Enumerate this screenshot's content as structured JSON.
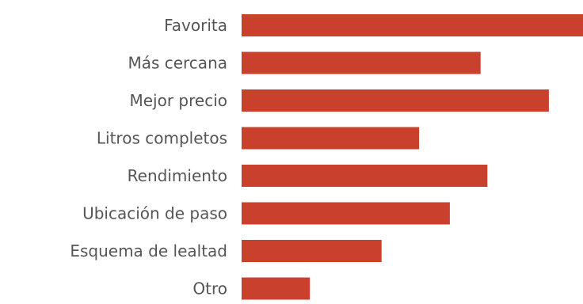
{
  "chart_data": {
    "type": "bar",
    "orientation": "horizontal",
    "categories": [
      "Favorita",
      "Más cercana",
      "Mejor precio",
      "Litros completos",
      "Rendimiento",
      "Ubicación de paso",
      "Esquema de lealtad",
      "Otro"
    ],
    "values": [
      100,
      70,
      90,
      52,
      72,
      61,
      41,
      20
    ],
    "title": "",
    "xlabel": "",
    "ylabel": "",
    "xlim": [
      0,
      100
    ],
    "grid": false,
    "legend": "none",
    "bar_color": "#c9402d"
  }
}
